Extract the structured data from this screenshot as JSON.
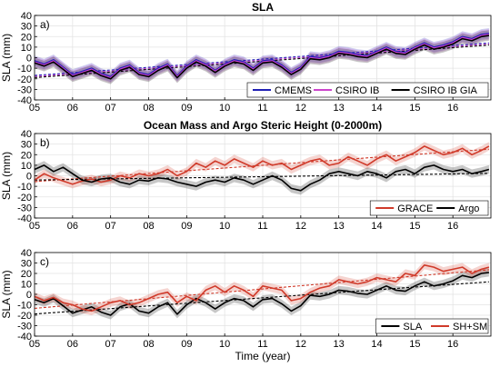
{
  "chart_data": [
    {
      "type": "line",
      "panel_label": "a)",
      "title": "SLA",
      "xlabel": "",
      "ylabel": "SLA (mm)",
      "xlim": [
        2005,
        2017
      ],
      "ylim": [
        -40,
        40
      ],
      "x_ticks": [
        "05",
        "06",
        "07",
        "08",
        "09",
        "10",
        "11",
        "12",
        "13",
        "14",
        "15",
        "16"
      ],
      "y_ticks": [
        "40",
        "30",
        "20",
        "10",
        "0",
        "-10",
        "-20",
        "-30",
        "-40"
      ],
      "grid": true,
      "legend_position": "bottom-right",
      "x": [
        2005.0,
        2005.25,
        2005.5,
        2005.75,
        2006.0,
        2006.25,
        2006.5,
        2006.75,
        2007.0,
        2007.25,
        2007.5,
        2007.75,
        2008.0,
        2008.25,
        2008.5,
        2008.75,
        2009.0,
        2009.25,
        2009.5,
        2009.75,
        2010.0,
        2010.25,
        2010.5,
        2010.75,
        2011.0,
        2011.25,
        2011.5,
        2011.75,
        2012.0,
        2012.25,
        2012.5,
        2012.75,
        2013.0,
        2013.25,
        2013.5,
        2013.75,
        2014.0,
        2014.25,
        2014.5,
        2014.75,
        2015.0,
        2015.25,
        2015.5,
        2015.75,
        2016.0,
        2016.25,
        2016.5,
        2016.75,
        2016.95
      ],
      "series": [
        {
          "name": "CMEMS",
          "color": "#1f1fb4",
          "values": [
            -3,
            -6,
            -2,
            -9,
            -16,
            -13,
            -10,
            -15,
            -18,
            -10,
            -7,
            -14,
            -16,
            -10,
            -6,
            -17,
            -8,
            -2,
            -6,
            -12,
            -6,
            -2,
            -4,
            -10,
            -3,
            -2,
            -7,
            -14,
            -9,
            1,
            0,
            2,
            6,
            5,
            3,
            2,
            6,
            10,
            6,
            5,
            10,
            14,
            10,
            12,
            15,
            20,
            18,
            22,
            23
          ]
        },
        {
          "name": "CSIRO IB",
          "color": "#cc44cc",
          "values": [
            -4,
            -7,
            -3,
            -10,
            -17,
            -14,
            -11,
            -16,
            -19,
            -11,
            -8,
            -15,
            -17,
            -11,
            -7,
            -18,
            -9,
            -3,
            -7,
            -13,
            -7,
            -3,
            -5,
            -11,
            -4,
            -3,
            -8,
            -15,
            -10,
            0,
            -1,
            1,
            5,
            4,
            2,
            1,
            5,
            9,
            5,
            4,
            9,
            13,
            9,
            11,
            14,
            19,
            17,
            21,
            22
          ]
        },
        {
          "name": "CSIRO IB GIA",
          "color": "#000000",
          "values": [
            -5,
            -8,
            -4,
            -11,
            -18,
            -15,
            -12,
            -17,
            -20,
            -12,
            -9,
            -16,
            -18,
            -12,
            -8,
            -19,
            -10,
            -4,
            -8,
            -14,
            -8,
            -4,
            -6,
            -12,
            -5,
            -4,
            -9,
            -16,
            -11,
            -1,
            -2,
            0,
            4,
            3,
            1,
            0,
            4,
            8,
            4,
            3,
            8,
            12,
            8,
            10,
            13,
            18,
            16,
            20,
            21
          ]
        }
      ]
    },
    {
      "type": "line",
      "panel_label": "b)",
      "title": "Ocean Mass and Argo Steric Height (0-2000m)",
      "xlabel": "",
      "ylabel": "SLA (mm)",
      "xlim": [
        2005,
        2017
      ],
      "ylim": [
        -40,
        40
      ],
      "x_ticks": [
        "05",
        "06",
        "07",
        "08",
        "09",
        "10",
        "11",
        "12",
        "13",
        "14",
        "15",
        "16"
      ],
      "y_ticks": [
        "40",
        "30",
        "20",
        "10",
        "0",
        "-10",
        "-20",
        "-30",
        "-40"
      ],
      "grid": true,
      "legend_position": "bottom-right",
      "x": [
        2005.0,
        2005.25,
        2005.5,
        2005.75,
        2006.0,
        2006.25,
        2006.5,
        2006.75,
        2007.0,
        2007.25,
        2007.5,
        2007.75,
        2008.0,
        2008.25,
        2008.5,
        2008.75,
        2009.0,
        2009.25,
        2009.5,
        2009.75,
        2010.0,
        2010.25,
        2010.5,
        2010.75,
        2011.0,
        2011.25,
        2011.5,
        2011.75,
        2012.0,
        2012.25,
        2012.5,
        2012.75,
        2013.0,
        2013.25,
        2013.5,
        2013.75,
        2014.0,
        2014.25,
        2014.5,
        2014.75,
        2015.0,
        2015.25,
        2015.5,
        2015.75,
        2016.0,
        2016.25,
        2016.5,
        2016.75,
        2016.95
      ],
      "series": [
        {
          "name": "GRACE",
          "color": "#d03a2a",
          "values": [
            -4,
            2,
            -2,
            -5,
            -8,
            -5,
            -3,
            -6,
            -4,
            0,
            -2,
            2,
            0,
            2,
            6,
            0,
            4,
            12,
            8,
            14,
            10,
            16,
            12,
            8,
            14,
            10,
            12,
            6,
            10,
            14,
            16,
            10,
            12,
            18,
            14,
            10,
            16,
            20,
            14,
            18,
            22,
            28,
            24,
            20,
            22,
            26,
            20,
            24,
            28
          ]
        },
        {
          "name": "Argo",
          "color": "#000000",
          "values": [
            6,
            10,
            4,
            8,
            2,
            -4,
            -6,
            -3,
            -2,
            -6,
            -8,
            -4,
            -5,
            -2,
            -3,
            -6,
            -8,
            -10,
            -6,
            -4,
            -6,
            -2,
            -4,
            -8,
            -4,
            0,
            -4,
            -12,
            -14,
            -8,
            -4,
            2,
            4,
            2,
            0,
            4,
            2,
            -2,
            4,
            6,
            2,
            8,
            10,
            6,
            4,
            6,
            2,
            4,
            6
          ]
        }
      ]
    },
    {
      "type": "line",
      "panel_label": "c)",
      "title": "",
      "xlabel": "Time (year)",
      "ylabel": "SLA (mm)",
      "xlim": [
        2005,
        2017
      ],
      "ylim": [
        -40,
        40
      ],
      "x_ticks": [
        "05",
        "06",
        "07",
        "08",
        "09",
        "10",
        "11",
        "12",
        "13",
        "14",
        "15",
        "16"
      ],
      "y_ticks": [
        "40",
        "30",
        "20",
        "10",
        "0",
        "-10",
        "-20",
        "-30",
        "-40"
      ],
      "grid": true,
      "legend_position": "bottom-right",
      "x": [
        2005.0,
        2005.25,
        2005.5,
        2005.75,
        2006.0,
        2006.25,
        2006.5,
        2006.75,
        2007.0,
        2007.25,
        2007.5,
        2007.75,
        2008.0,
        2008.25,
        2008.5,
        2008.75,
        2009.0,
        2009.25,
        2009.5,
        2009.75,
        2010.0,
        2010.25,
        2010.5,
        2010.75,
        2011.0,
        2011.25,
        2011.5,
        2011.75,
        2012.0,
        2012.25,
        2012.5,
        2012.75,
        2013.0,
        2013.25,
        2013.5,
        2013.75,
        2014.0,
        2014.25,
        2014.5,
        2014.75,
        2015.0,
        2015.25,
        2015.5,
        2015.75,
        2016.0,
        2016.25,
        2016.5,
        2016.75,
        2016.95
      ],
      "series": [
        {
          "name": "SLA",
          "color": "#000000",
          "values": [
            -5,
            -8,
            -4,
            -11,
            -18,
            -15,
            -12,
            -17,
            -20,
            -12,
            -9,
            -16,
            -18,
            -12,
            -8,
            -19,
            -10,
            -4,
            -8,
            -14,
            -8,
            -4,
            -6,
            -12,
            -5,
            -4,
            -9,
            -16,
            -11,
            -1,
            -2,
            0,
            4,
            3,
            1,
            0,
            4,
            8,
            4,
            3,
            8,
            12,
            8,
            10,
            13,
            18,
            16,
            20,
            21
          ]
        },
        {
          "name": "SH+SM",
          "color": "#d03a2a",
          "values": [
            -2,
            -6,
            -3,
            -8,
            -10,
            -14,
            -16,
            -12,
            -8,
            -6,
            -10,
            -8,
            -4,
            0,
            2,
            -8,
            -2,
            -6,
            4,
            8,
            2,
            8,
            4,
            -2,
            8,
            6,
            4,
            -6,
            -4,
            2,
            6,
            8,
            14,
            12,
            10,
            12,
            16,
            14,
            12,
            20,
            18,
            28,
            26,
            22,
            24,
            26,
            20,
            24,
            26
          ]
        }
      ]
    }
  ]
}
